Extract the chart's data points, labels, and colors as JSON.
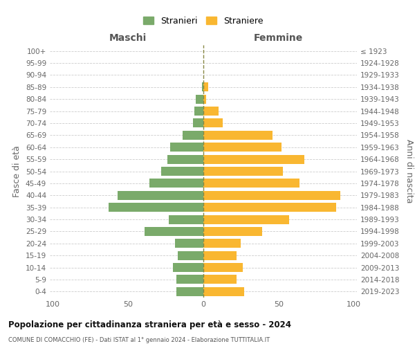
{
  "age_groups": [
    "0-4",
    "5-9",
    "10-14",
    "15-19",
    "20-24",
    "25-29",
    "30-34",
    "35-39",
    "40-44",
    "45-49",
    "50-54",
    "55-59",
    "60-64",
    "65-69",
    "70-74",
    "75-79",
    "80-84",
    "85-89",
    "90-94",
    "95-99",
    "100+"
  ],
  "birth_years": [
    "2019-2023",
    "2014-2018",
    "2009-2013",
    "2004-2008",
    "1999-2003",
    "1994-1998",
    "1989-1993",
    "1984-1988",
    "1979-1983",
    "1974-1978",
    "1969-1973",
    "1964-1968",
    "1959-1963",
    "1954-1958",
    "1949-1953",
    "1944-1948",
    "1939-1943",
    "1934-1938",
    "1929-1933",
    "1924-1928",
    "≤ 1923"
  ],
  "maschi": [
    18,
    18,
    20,
    17,
    19,
    39,
    23,
    63,
    57,
    36,
    28,
    24,
    22,
    14,
    7,
    6,
    5,
    1,
    0,
    0,
    0
  ],
  "femmine": [
    27,
    22,
    26,
    22,
    25,
    39,
    57,
    88,
    91,
    64,
    53,
    67,
    52,
    46,
    13,
    10,
    2,
    3,
    0,
    0,
    0
  ],
  "color_maschi": "#7aaa6a",
  "color_femmine": "#f9b731",
  "title": "Popolazione per cittadinanza straniera per età e sesso - 2024",
  "subtitle": "COMUNE DI COMACCHIO (FE) - Dati ISTAT al 1° gennaio 2024 - Elaborazione TUTTITALIA.IT",
  "ylabel_left": "Fasce di età",
  "ylabel_right": "Anni di nascita",
  "xlabel_left": "Maschi",
  "xlabel_top_right": "Femmine",
  "legend_maschi": "Stranieri",
  "legend_femmine": "Straniere",
  "xlim": 100,
  "background_color": "#ffffff",
  "grid_color": "#cccccc",
  "dashed_line_color": "#888844"
}
